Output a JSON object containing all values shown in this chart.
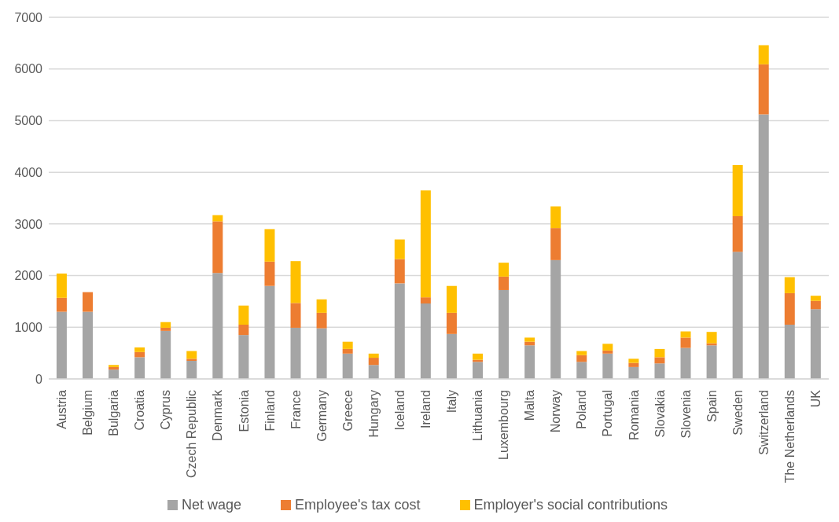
{
  "chart_data": {
    "type": "bar",
    "stacked": true,
    "categories": [
      "Austria",
      "Belgium",
      "Bulgaria",
      "Croatia",
      "Cyprus",
      "Czech Republic",
      "Denmark",
      "Estonia",
      "Finland",
      "France",
      "Germany",
      "Greece",
      "Hungary",
      "Iceland",
      "Ireland",
      "Italy",
      "Lithuania",
      "Luxembourg",
      "Malta",
      "Norway",
      "Poland",
      "Portugal",
      "Romania",
      "Slovakia",
      "Slovenia",
      "Spain",
      "Sweden",
      "Switzerland",
      "The Netherlands",
      "UK"
    ],
    "series": [
      {
        "name": "Net wage",
        "color": "#a5a5a5",
        "values": [
          1300,
          1300,
          180,
          420,
          930,
          350,
          2050,
          850,
          1800,
          990,
          980,
          490,
          270,
          1850,
          1460,
          870,
          330,
          1720,
          650,
          2300,
          330,
          490,
          230,
          300,
          600,
          650,
          2460,
          5120,
          1050,
          1350
        ]
      },
      {
        "name": "Employee's tax cost",
        "color": "#ed7d31",
        "values": [
          270,
          380,
          50,
          100,
          60,
          40,
          1000,
          200,
          470,
          480,
          300,
          90,
          140,
          470,
          120,
          410,
          40,
          260,
          70,
          620,
          130,
          60,
          80,
          120,
          200,
          40,
          690,
          970,
          610,
          160
        ]
      },
      {
        "name": "Employer's social contributions",
        "color": "#ffc000",
        "values": [
          470,
          0,
          40,
          90,
          110,
          150,
          120,
          370,
          630,
          810,
          260,
          140,
          80,
          380,
          2070,
          520,
          120,
          270,
          80,
          420,
          80,
          130,
          80,
          160,
          120,
          220,
          990,
          370,
          310,
          100
        ]
      }
    ],
    "ylim": [
      0,
      7000
    ],
    "yticks": [
      0,
      1000,
      2000,
      3000,
      4000,
      5000,
      6000,
      7000
    ],
    "grid": "y",
    "legend": "bottom"
  }
}
